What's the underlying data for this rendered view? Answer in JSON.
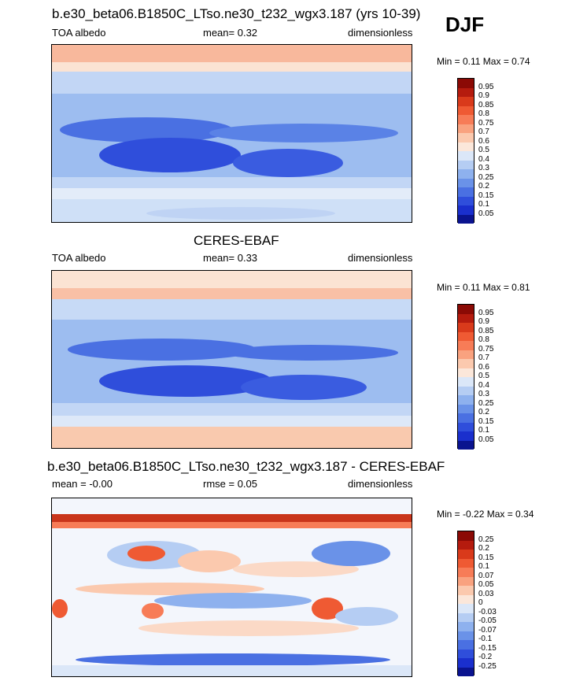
{
  "season": "DJF",
  "panels": [
    {
      "title": "b.e30_beta06.B1850C_LTso.ne30_t232_wgx3.187 (yrs 10-39)",
      "left_label": "TOA albedo",
      "center_label": "mean=  0.32",
      "right_label": "dimensionless",
      "minmax": "Min =   0.11 Max =   0.74",
      "colorbar": {
        "labels": [
          "0.95",
          "0.9",
          "0.85",
          "0.8",
          "0.75",
          "0.7",
          "0.6",
          "0.5",
          "0.4",
          "0.3",
          "0.25",
          "0.2",
          "0.15",
          "0.1",
          "0.05"
        ],
        "colors": [
          "#8b0a05",
          "#b51b0e",
          "#d93a1b",
          "#ef5a33",
          "#f77c57",
          "#f9a27f",
          "#fbc9ae",
          "#fbe7da",
          "#dbe7f8",
          "#b5cdf3",
          "#8eb1ee",
          "#6a92e8",
          "#4a70e2",
          "#2f4edb",
          "#1a2fcd",
          "#0a138f"
        ]
      }
    },
    {
      "title": "CERES-EBAF",
      "left_label": "TOA albedo",
      "center_label": "mean=  0.33",
      "right_label": "dimensionless",
      "minmax": "Min =   0.11 Max =   0.81",
      "colorbar": {
        "labels": [
          "0.95",
          "0.9",
          "0.85",
          "0.8",
          "0.75",
          "0.7",
          "0.6",
          "0.5",
          "0.4",
          "0.3",
          "0.25",
          "0.2",
          "0.15",
          "0.1",
          "0.05"
        ],
        "colors": [
          "#8b0a05",
          "#b51b0e",
          "#d93a1b",
          "#ef5a33",
          "#f77c57",
          "#f9a27f",
          "#fbc9ae",
          "#fbe7da",
          "#dbe7f8",
          "#b5cdf3",
          "#8eb1ee",
          "#6a92e8",
          "#4a70e2",
          "#2f4edb",
          "#1a2fcd",
          "#0a138f"
        ]
      }
    },
    {
      "title": "b.e30_beta06.B1850C_LTso.ne30_t232_wgx3.187 - CERES-EBAF",
      "left_label": "mean =  -0.00",
      "center_label": "rmse =  0.05",
      "right_label": "dimensionless",
      "minmax": "Min =  -0.22 Max =   0.34",
      "colorbar": {
        "labels": [
          "0.25",
          "0.2",
          "0.15",
          "0.1",
          "0.07",
          "0.05",
          "0.03",
          "0",
          "-0.03",
          "-0.05",
          "-0.07",
          "-0.1",
          "-0.15",
          "-0.2",
          "-0.25"
        ],
        "colors": [
          "#8b0a05",
          "#b51b0e",
          "#d93a1b",
          "#ef5a33",
          "#f77c57",
          "#f9a27f",
          "#fbc9ae",
          "#fbe7da",
          "#dbe7f8",
          "#b5cdf3",
          "#8eb1ee",
          "#6a92e8",
          "#4a70e2",
          "#2f4edb",
          "#1a2fcd",
          "#0a138f"
        ]
      }
    }
  ]
}
